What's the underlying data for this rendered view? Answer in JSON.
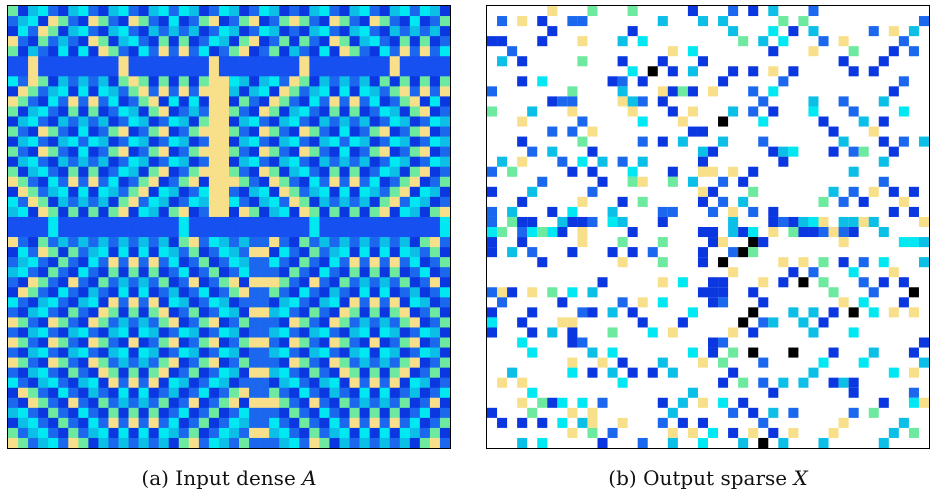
{
  "figure": {
    "panel_a": {
      "label": "(a)",
      "caption_text": "Input dense",
      "symbol": "A"
    },
    "panel_b": {
      "label": "(b)",
      "caption_text": "Output sparse",
      "symbol": "X"
    }
  },
  "colors": {
    "palette": [
      "#0a37e0",
      "#1b67ee",
      "#0bbfe6",
      "#00e9f2",
      "#6ee9a0",
      "#f8e08a",
      "#000000"
    ],
    "background_dense": "#1a55e6",
    "band": "#1650f0",
    "sparse_bg": "#ffffff"
  },
  "grid": {
    "rows": 44,
    "cols": 44
  }
}
